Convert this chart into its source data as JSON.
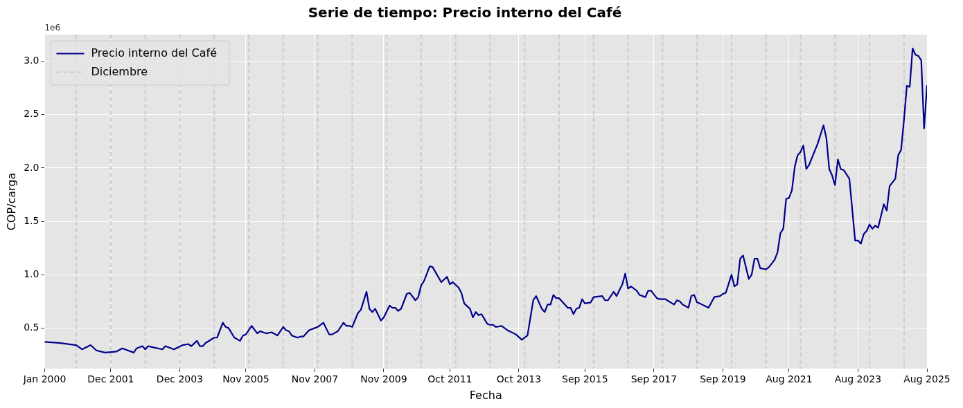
{
  "chart_data": {
    "type": "line",
    "title": "Serie de tiempo: Precio interno del Café",
    "xlabel": "Fecha",
    "ylabel": "COP/carga",
    "annotations": [
      "1e6"
    ],
    "x": [
      "2000-01",
      "2000-06",
      "2000-12",
      "2001-02",
      "2001-05",
      "2001-07",
      "2001-10",
      "2002-02",
      "2002-04",
      "2002-08",
      "2002-09",
      "2002-11",
      "2002-12",
      "2003-01",
      "2003-06",
      "2003-07",
      "2003-10",
      "2004-01",
      "2004-03",
      "2004-04",
      "2004-06",
      "2004-07",
      "2004-08",
      "2004-09",
      "2004-12",
      "2005-01",
      "2005-03",
      "2005-04",
      "2005-05",
      "2005-07",
      "2005-09",
      "2005-10",
      "2005-11",
      "2006-01",
      "2006-03",
      "2006-04",
      "2006-06",
      "2006-08",
      "2006-10",
      "2006-12",
      "2007-01",
      "2007-02",
      "2007-03",
      "2007-05",
      "2007-06",
      "2007-07",
      "2007-09",
      "2007-11",
      "2007-12",
      "2008-02",
      "2008-04",
      "2008-05",
      "2008-07",
      "2008-09",
      "2008-10",
      "2008-11",
      "2008-12",
      "2009-02",
      "2009-03",
      "2009-05",
      "2009-06",
      "2009-07",
      "2009-08",
      "2009-10",
      "2009-11",
      "2010-01",
      "2010-02",
      "2010-03",
      "2010-04",
      "2010-05",
      "2010-07",
      "2010-08",
      "2010-10",
      "2010-11",
      "2010-12",
      "2011-01",
      "2011-03",
      "2011-04",
      "2011-07",
      "2011-09",
      "2011-10",
      "2011-11",
      "2012-01",
      "2012-02",
      "2012-03",
      "2012-05",
      "2012-06",
      "2012-07",
      "2012-08",
      "2012-09",
      "2012-11",
      "2012-12",
      "2013-01",
      "2013-02",
      "2013-04",
      "2013-06",
      "2013-09",
      "2013-11",
      "2014-01",
      "2014-03",
      "2014-04",
      "2014-06",
      "2014-07",
      "2014-08",
      "2014-09",
      "2014-10",
      "2014-11",
      "2014-12",
      "2015-03",
      "2015-04",
      "2015-05",
      "2015-06",
      "2015-07",
      "2015-08",
      "2015-09",
      "2015-11",
      "2015-12",
      "2016-03",
      "2016-04",
      "2016-05",
      "2016-07",
      "2016-08",
      "2016-10",
      "2016-11",
      "2016-12",
      "2017-01",
      "2017-03",
      "2017-04",
      "2017-06",
      "2017-07",
      "2017-08",
      "2017-10",
      "2017-11",
      "2018-01",
      "2018-04",
      "2018-05",
      "2018-06",
      "2018-07",
      "2018-09",
      "2018-10",
      "2018-11",
      "2018-12",
      "2019-01",
      "2019-04",
      "2019-06",
      "2019-08",
      "2019-09",
      "2019-10",
      "2019-12",
      "2020-01",
      "2020-02",
      "2020-03",
      "2020-04",
      "2020-06",
      "2020-07",
      "2020-08",
      "2020-09",
      "2020-10",
      "2020-12",
      "2021-01",
      "2021-03",
      "2021-04",
      "2021-05",
      "2021-06",
      "2021-07",
      "2021-08",
      "2021-09",
      "2021-10",
      "2021-11",
      "2021-12",
      "2022-01",
      "2022-02",
      "2022-03",
      "2022-06",
      "2022-08",
      "2022-09",
      "2022-10",
      "2022-11",
      "2022-12",
      "2023-01",
      "2023-02",
      "2023-03",
      "2023-05",
      "2023-07",
      "2023-08",
      "2023-09",
      "2023-10",
      "2023-11",
      "2023-12",
      "2024-01",
      "2024-02",
      "2024-03",
      "2024-05",
      "2024-06",
      "2024-07",
      "2024-09",
      "2024-10",
      "2024-11",
      "2024-12",
      "2025-01",
      "2025-02",
      "2025-03",
      "2025-04",
      "2025-05",
      "2025-06",
      "2025-07",
      "2025-08"
    ],
    "series": [
      {
        "name": "Precio interno del Café",
        "color": "#00008b",
        "values": [
          0.37,
          0.36,
          0.34,
          0.3,
          0.34,
          0.29,
          0.27,
          0.28,
          0.31,
          0.27,
          0.31,
          0.33,
          0.3,
          0.33,
          0.3,
          0.33,
          0.3,
          0.34,
          0.35,
          0.33,
          0.38,
          0.33,
          0.33,
          0.36,
          0.41,
          0.41,
          0.55,
          0.51,
          0.5,
          0.41,
          0.38,
          0.43,
          0.44,
          0.52,
          0.45,
          0.47,
          0.45,
          0.46,
          0.43,
          0.51,
          0.48,
          0.47,
          0.43,
          0.41,
          0.42,
          0.42,
          0.48,
          0.5,
          0.51,
          0.55,
          0.44,
          0.44,
          0.47,
          0.55,
          0.52,
          0.52,
          0.51,
          0.64,
          0.67,
          0.84,
          0.68,
          0.65,
          0.68,
          0.57,
          0.6,
          0.71,
          0.69,
          0.69,
          0.66,
          0.68,
          0.82,
          0.83,
          0.76,
          0.79,
          0.9,
          0.94,
          1.08,
          1.07,
          0.93,
          0.98,
          0.91,
          0.93,
          0.88,
          0.83,
          0.73,
          0.68,
          0.6,
          0.65,
          0.62,
          0.63,
          0.54,
          0.53,
          0.53,
          0.51,
          0.52,
          0.48,
          0.44,
          0.39,
          0.43,
          0.76,
          0.8,
          0.68,
          0.65,
          0.72,
          0.72,
          0.81,
          0.78,
          0.78,
          0.69,
          0.69,
          0.63,
          0.68,
          0.69,
          0.77,
          0.73,
          0.74,
          0.79,
          0.8,
          0.76,
          0.76,
          0.84,
          0.8,
          0.91,
          1.01,
          0.87,
          0.89,
          0.85,
          0.81,
          0.79,
          0.85,
          0.85,
          0.78,
          0.77,
          0.77,
          0.72,
          0.76,
          0.75,
          0.72,
          0.69,
          0.8,
          0.81,
          0.74,
          0.73,
          0.69,
          0.79,
          0.8,
          0.82,
          0.83,
          1.0,
          0.89,
          0.91,
          1.15,
          1.18,
          0.96,
          1.0,
          1.15,
          1.15,
          1.06,
          1.05,
          1.07,
          1.14,
          1.21,
          1.39,
          1.43,
          1.71,
          1.72,
          1.79,
          2.01,
          2.12,
          2.15,
          2.21,
          1.99,
          2.03,
          2.23,
          2.4,
          2.28,
          1.99,
          1.93,
          1.84,
          2.08,
          1.99,
          1.98,
          1.9,
          1.32,
          1.32,
          1.29,
          1.38,
          1.41,
          1.47,
          1.43,
          1.46,
          1.44,
          1.66,
          1.6,
          1.83,
          1.9,
          2.12,
          2.17,
          2.45,
          2.77,
          2.76,
          3.12,
          3.06,
          3.05,
          3.01,
          2.37,
          2.77
        ]
      }
    ],
    "xlim": [
      "2000-01",
      "2025-08"
    ],
    "xticks": [
      {
        "value": "2000-01",
        "label": "Jan 2000"
      },
      {
        "value": "2001-12",
        "label": "Dec 2001"
      },
      {
        "value": "2003-12",
        "label": "Dec 2003"
      },
      {
        "value": "2005-11",
        "label": "Nov 2005"
      },
      {
        "value": "2007-11",
        "label": "Nov 2007"
      },
      {
        "value": "2009-11",
        "label": "Nov 2009"
      },
      {
        "value": "2011-10",
        "label": "Oct 2011"
      },
      {
        "value": "2013-10",
        "label": "Oct 2013"
      },
      {
        "value": "2015-09",
        "label": "Sep 2015"
      },
      {
        "value": "2017-09",
        "label": "Sep 2017"
      },
      {
        "value": "2019-09",
        "label": "Sep 2019"
      },
      {
        "value": "2021-08",
        "label": "Aug 2021"
      },
      {
        "value": "2023-08",
        "label": "Aug 2023"
      },
      {
        "value": "2025-08",
        "label": "Aug 2025"
      }
    ],
    "ylim": [
      0.12,
      3.25
    ],
    "yticks": [
      0.5,
      {
        "value": 1,
        "label": "1.0"
      },
      1.5,
      {
        "value": 2,
        "label": "2.0"
      },
      2.5,
      {
        "value": 3,
        "label": "3.0"
      }
    ],
    "ref_lines": [
      {
        "axis": "x",
        "value": "2000-12",
        "label": "Diciembre",
        "color": "#cccccc",
        "line_style": "dashed"
      },
      {
        "axis": "x",
        "value": "2001-12",
        "color": "#cccccc",
        "line_style": "dashed"
      },
      {
        "axis": "x",
        "value": "2002-12",
        "color": "#cccccc",
        "line_style": "dashed"
      },
      {
        "axis": "x",
        "value": "2003-12",
        "color": "#cccccc",
        "line_style": "dashed"
      },
      {
        "axis": "x",
        "value": "2004-12",
        "color": "#cccccc",
        "line_style": "dashed"
      },
      {
        "axis": "x",
        "value": "2005-12",
        "color": "#cccccc",
        "line_style": "dashed"
      },
      {
        "axis": "x",
        "value": "2006-12",
        "color": "#cccccc",
        "line_style": "dashed"
      },
      {
        "axis": "x",
        "value": "2007-12",
        "color": "#cccccc",
        "line_style": "dashed"
      },
      {
        "axis": "x",
        "value": "2008-12",
        "color": "#cccccc",
        "line_style": "dashed"
      },
      {
        "axis": "x",
        "value": "2009-12",
        "color": "#cccccc",
        "line_style": "dashed"
      },
      {
        "axis": "x",
        "value": "2010-12",
        "color": "#cccccc",
        "line_style": "dashed"
      },
      {
        "axis": "x",
        "value": "2011-12",
        "color": "#cccccc",
        "line_style": "dashed"
      },
      {
        "axis": "x",
        "value": "2012-12",
        "color": "#cccccc",
        "line_style": "dashed"
      },
      {
        "axis": "x",
        "value": "2013-12",
        "color": "#cccccc",
        "line_style": "dashed"
      },
      {
        "axis": "x",
        "value": "2014-12",
        "color": "#cccccc",
        "line_style": "dashed"
      },
      {
        "axis": "x",
        "value": "2015-12",
        "color": "#cccccc",
        "line_style": "dashed"
      },
      {
        "axis": "x",
        "value": "2016-12",
        "color": "#cccccc",
        "line_style": "dashed"
      },
      {
        "axis": "x",
        "value": "2017-12",
        "color": "#cccccc",
        "line_style": "dashed"
      },
      {
        "axis": "x",
        "value": "2018-12",
        "color": "#cccccc",
        "line_style": "dashed"
      },
      {
        "axis": "x",
        "value": "2019-12",
        "color": "#cccccc",
        "line_style": "dashed"
      },
      {
        "axis": "x",
        "value": "2020-12",
        "color": "#cccccc",
        "line_style": "dashed"
      },
      {
        "axis": "x",
        "value": "2021-12",
        "color": "#cccccc",
        "line_style": "dashed"
      },
      {
        "axis": "x",
        "value": "2022-12",
        "color": "#cccccc",
        "line_style": "dashed"
      },
      {
        "axis": "x",
        "value": "2023-12",
        "color": "#cccccc",
        "line_style": "dashed"
      },
      {
        "axis": "x",
        "value": "2024-12",
        "color": "#cccccc",
        "line_style": "dashed"
      }
    ],
    "grid": true,
    "legend": "top left",
    "line_style": "solid"
  }
}
